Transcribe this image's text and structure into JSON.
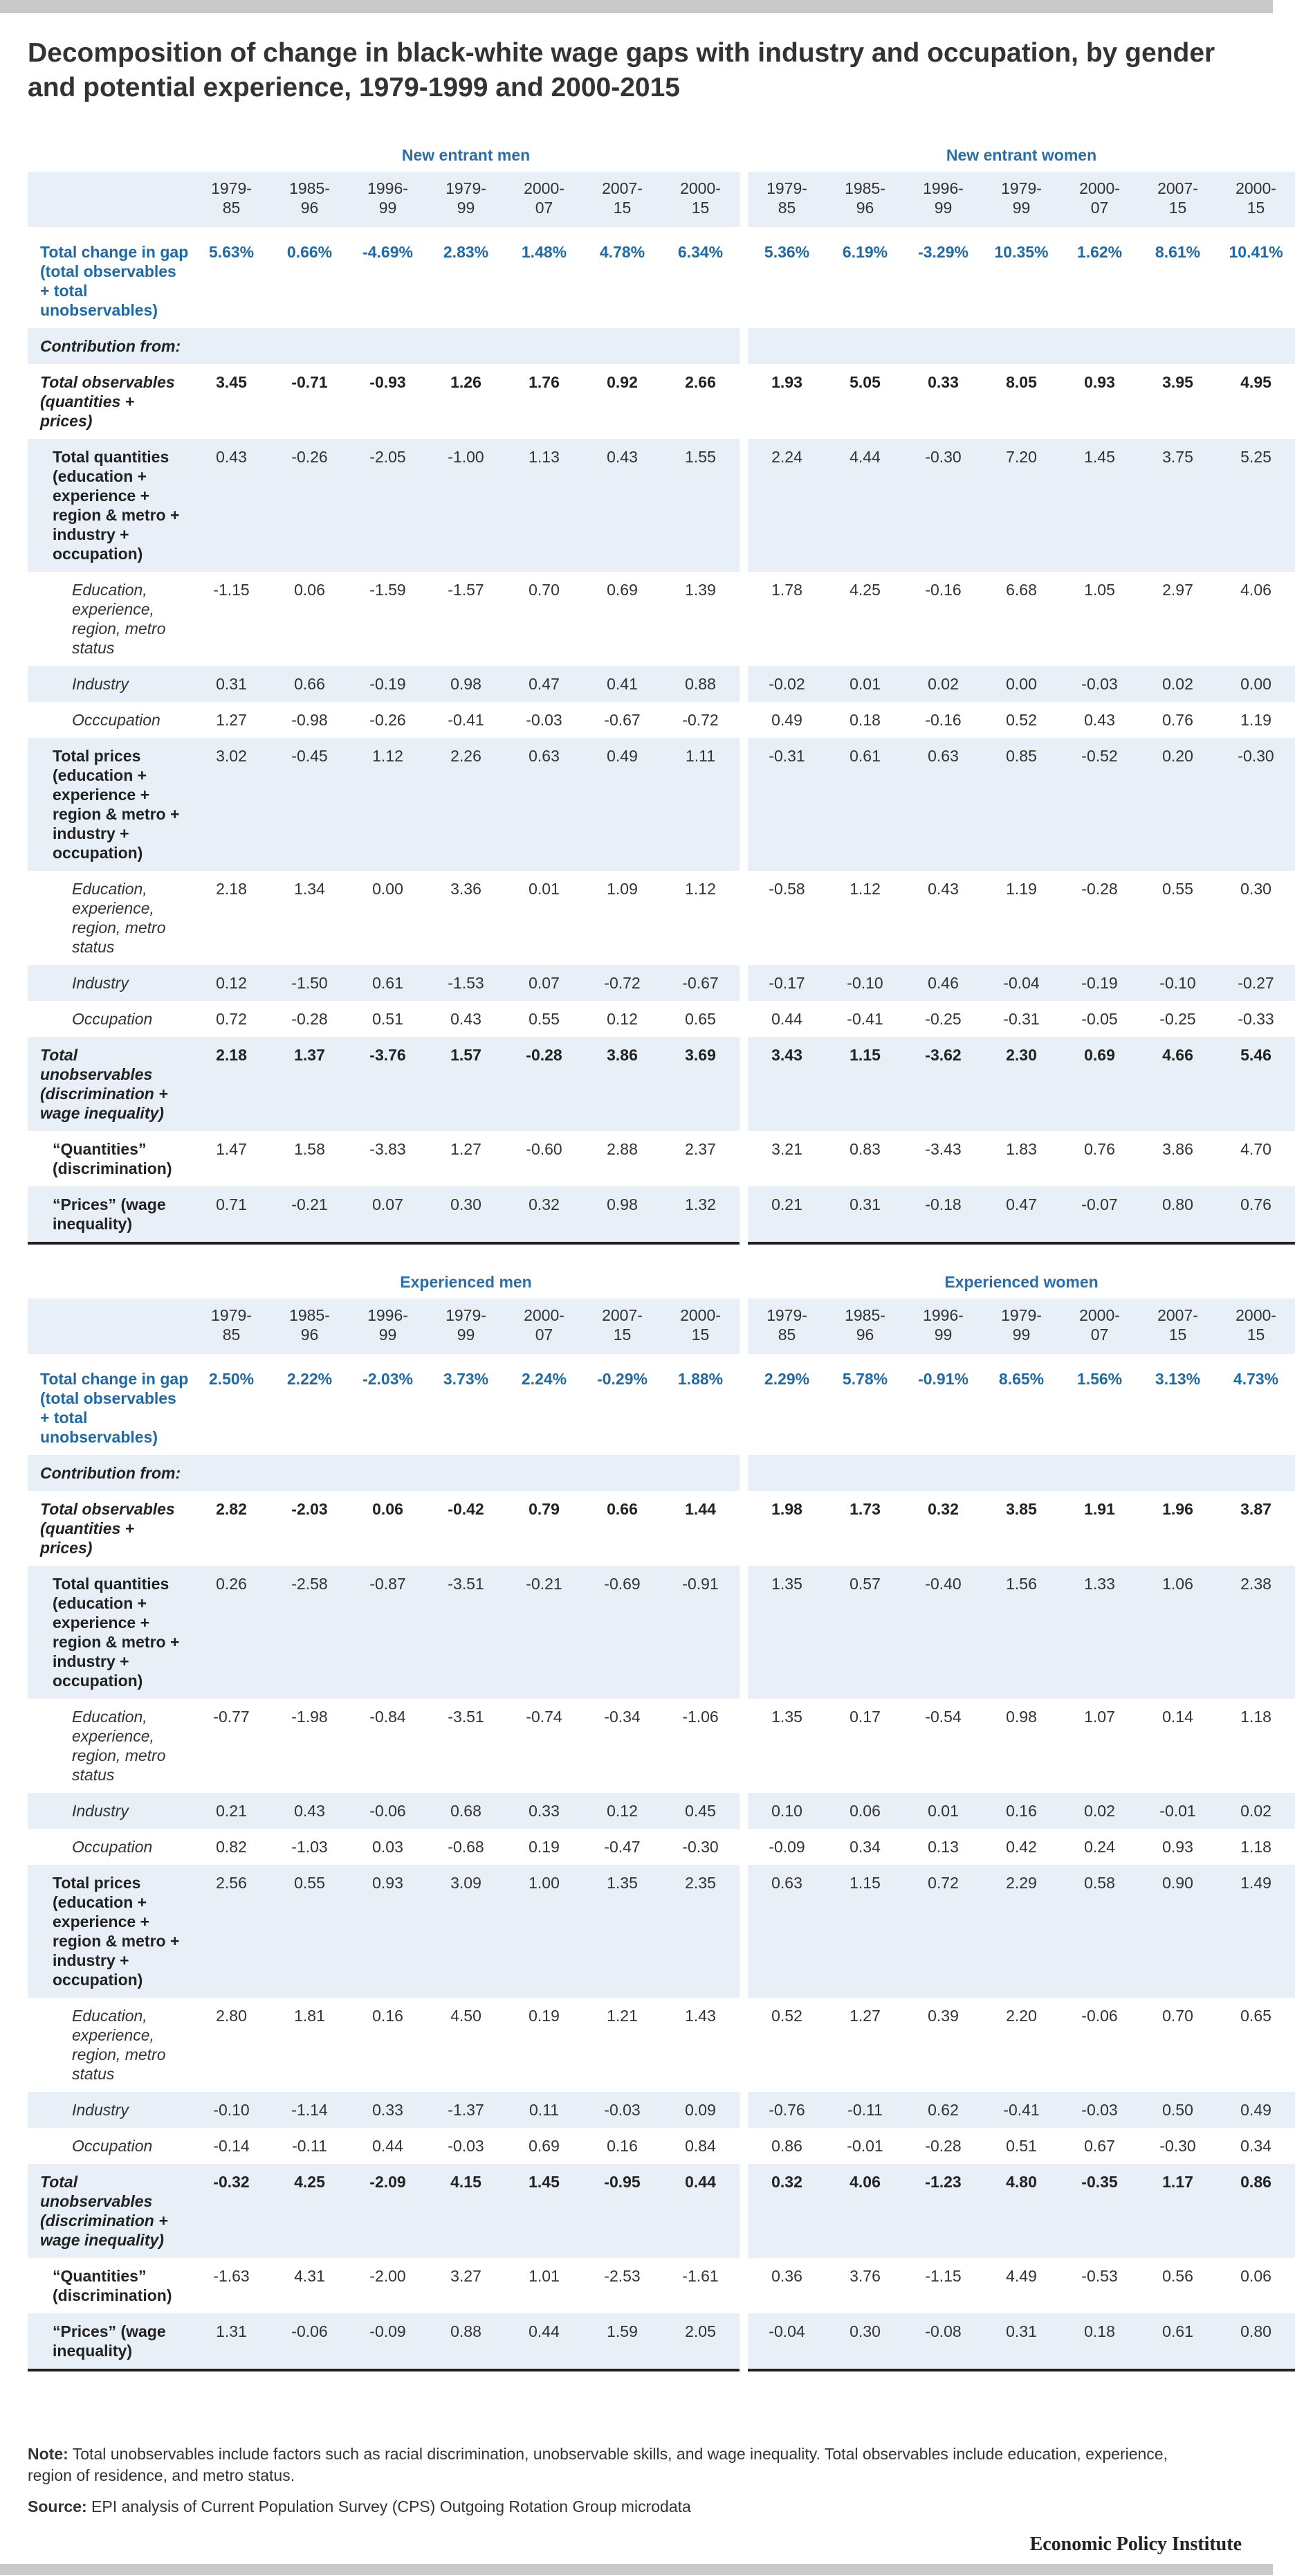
{
  "title": "Decomposition of change in black-white wage gaps with industry and occupation, by gender and potential experience, 1979-1999 and 2000-2015",
  "panels": [
    {
      "groups": [
        "New entrant men",
        "New entrant women"
      ],
      "columns": [
        "1979-85",
        "1985-96",
        "1996-99",
        "1979-99",
        "2000-07",
        "2007-15",
        "2000-15"
      ],
      "rows": [
        {
          "label": "Total change in gap (total observables + total unobservables)",
          "men": [
            "5.63%",
            "0.66%",
            "-4.69%",
            "2.83%",
            "1.48%",
            "4.78%",
            "6.34%"
          ],
          "women": [
            "5.36%",
            "6.19%",
            "-3.29%",
            "10.35%",
            "1.62%",
            "8.61%",
            "10.41%"
          ]
        },
        {
          "label": "Contribution from:"
        },
        {
          "label": "Total observables (quantities + prices)",
          "men": [
            "3.45",
            "-0.71",
            "-0.93",
            "1.26",
            "1.76",
            "0.92",
            "2.66"
          ],
          "women": [
            "1.93",
            "5.05",
            "0.33",
            "8.05",
            "0.93",
            "3.95",
            "4.95"
          ]
        },
        {
          "label": "Total quantities (education + experience + region & metro + industry + occupation)",
          "men": [
            "0.43",
            "-0.26",
            "-2.05",
            "-1.00",
            "1.13",
            "0.43",
            "1.55"
          ],
          "women": [
            "2.24",
            "4.44",
            "-0.30",
            "7.20",
            "1.45",
            "3.75",
            "5.25"
          ]
        },
        {
          "label": "Education, experience, region, metro status",
          "men": [
            "-1.15",
            "0.06",
            "-1.59",
            "-1.57",
            "0.70",
            "0.69",
            "1.39"
          ],
          "women": [
            "1.78",
            "4.25",
            "-0.16",
            "6.68",
            "1.05",
            "2.97",
            "4.06"
          ]
        },
        {
          "label": "Industry",
          "men": [
            "0.31",
            "0.66",
            "-0.19",
            "0.98",
            "0.47",
            "0.41",
            "0.88"
          ],
          "women": [
            "-0.02",
            "0.01",
            "0.02",
            "0.00",
            "-0.03",
            "0.02",
            "0.00"
          ]
        },
        {
          "label": "Occcupation",
          "men": [
            "1.27",
            "-0.98",
            "-0.26",
            "-0.41",
            "-0.03",
            "-0.67",
            "-0.72"
          ],
          "women": [
            "0.49",
            "0.18",
            "-0.16",
            "0.52",
            "0.43",
            "0.76",
            "1.19"
          ]
        },
        {
          "label": "Total prices (education + experience + region & metro + industry + occupation)",
          "men": [
            "3.02",
            "-0.45",
            "1.12",
            "2.26",
            "0.63",
            "0.49",
            "1.11"
          ],
          "women": [
            "-0.31",
            "0.61",
            "0.63",
            "0.85",
            "-0.52",
            "0.20",
            "-0.30"
          ]
        },
        {
          "label": "Education, experience, region, metro status",
          "men": [
            "2.18",
            "1.34",
            "0.00",
            "3.36",
            "0.01",
            "1.09",
            "1.12"
          ],
          "women": [
            "-0.58",
            "1.12",
            "0.43",
            "1.19",
            "-0.28",
            "0.55",
            "0.30"
          ]
        },
        {
          "label": "Industry",
          "men": [
            "0.12",
            "-1.50",
            "0.61",
            "-1.53",
            "0.07",
            "-0.72",
            "-0.67"
          ],
          "women": [
            "-0.17",
            "-0.10",
            "0.46",
            "-0.04",
            "-0.19",
            "-0.10",
            "-0.27"
          ]
        },
        {
          "label": "Occupation",
          "men": [
            "0.72",
            "-0.28",
            "0.51",
            "0.43",
            "0.55",
            "0.12",
            "0.65"
          ],
          "women": [
            "0.44",
            "-0.41",
            "-0.25",
            "-0.31",
            "-0.05",
            "-0.25",
            "-0.33"
          ]
        },
        {
          "label": "Total unobservables (discrimination + wage inequality)",
          "men": [
            "2.18",
            "1.37",
            "-3.76",
            "1.57",
            "-0.28",
            "3.86",
            "3.69"
          ],
          "women": [
            "3.43",
            "1.15",
            "-3.62",
            "2.30",
            "0.69",
            "4.66",
            "5.46"
          ]
        },
        {
          "label": "“Quantities” (discrimination)",
          "men": [
            "1.47",
            "1.58",
            "-3.83",
            "1.27",
            "-0.60",
            "2.88",
            "2.37"
          ],
          "women": [
            "3.21",
            "0.83",
            "-3.43",
            "1.83",
            "0.76",
            "3.86",
            "4.70"
          ]
        },
        {
          "label": "“Prices” (wage inequality)",
          "men": [
            "0.71",
            "-0.21",
            "0.07",
            "0.30",
            "0.32",
            "0.98",
            "1.32"
          ],
          "women": [
            "0.21",
            "0.31",
            "-0.18",
            "0.47",
            "-0.07",
            "0.80",
            "0.76"
          ]
        }
      ]
    },
    {
      "groups": [
        "Experienced men",
        "Experienced women"
      ],
      "columns": [
        "1979-85",
        "1985-96",
        "1996-99",
        "1979-99",
        "2000-07",
        "2007-15",
        "2000-15"
      ],
      "rows": [
        {
          "label": "Total change in gap (total observables + total unobservables)",
          "men": [
            "2.50%",
            "2.22%",
            "-2.03%",
            "3.73%",
            "2.24%",
            "-0.29%",
            "1.88%"
          ],
          "women": [
            "2.29%",
            "5.78%",
            "-0.91%",
            "8.65%",
            "1.56%",
            "3.13%",
            "4.73%"
          ]
        },
        {
          "label": "Contribution from:"
        },
        {
          "label": "Total observables (quantities + prices)",
          "men": [
            "2.82",
            "-2.03",
            "0.06",
            "-0.42",
            "0.79",
            "0.66",
            "1.44"
          ],
          "women": [
            "1.98",
            "1.73",
            "0.32",
            "3.85",
            "1.91",
            "1.96",
            "3.87"
          ]
        },
        {
          "label": "Total quantities (education + experience + region & metro + industry + occupation)",
          "men": [
            "0.26",
            "-2.58",
            "-0.87",
            "-3.51",
            "-0.21",
            "-0.69",
            "-0.91"
          ],
          "women": [
            "1.35",
            "0.57",
            "-0.40",
            "1.56",
            "1.33",
            "1.06",
            "2.38"
          ]
        },
        {
          "label": "Education, experience, region, metro status",
          "men": [
            "-0.77",
            "-1.98",
            "-0.84",
            "-3.51",
            "-0.74",
            "-0.34",
            "-1.06"
          ],
          "women": [
            "1.35",
            "0.17",
            "-0.54",
            "0.98",
            "1.07",
            "0.14",
            "1.18"
          ]
        },
        {
          "label": "Industry",
          "men": [
            "0.21",
            "0.43",
            "-0.06",
            "0.68",
            "0.33",
            "0.12",
            "0.45"
          ],
          "women": [
            "0.10",
            "0.06",
            "0.01",
            "0.16",
            "0.02",
            "-0.01",
            "0.02"
          ]
        },
        {
          "label": "Occupation",
          "men": [
            "0.82",
            "-1.03",
            "0.03",
            "-0.68",
            "0.19",
            "-0.47",
            "-0.30"
          ],
          "women": [
            "-0.09",
            "0.34",
            "0.13",
            "0.42",
            "0.24",
            "0.93",
            "1.18"
          ]
        },
        {
          "label": "Total prices (education + experience + region & metro + industry + occupation)",
          "men": [
            "2.56",
            "0.55",
            "0.93",
            "3.09",
            "1.00",
            "1.35",
            "2.35"
          ],
          "women": [
            "0.63",
            "1.15",
            "0.72",
            "2.29",
            "0.58",
            "0.90",
            "1.49"
          ]
        },
        {
          "label": "Education, experience, region, metro status",
          "men": [
            "2.80",
            "1.81",
            "0.16",
            "4.50",
            "0.19",
            "1.21",
            "1.43"
          ],
          "women": [
            "0.52",
            "1.27",
            "0.39",
            "2.20",
            "-0.06",
            "0.70",
            "0.65"
          ]
        },
        {
          "label": "Industry",
          "men": [
            "-0.10",
            "-1.14",
            "0.33",
            "-1.37",
            "0.11",
            "-0.03",
            "0.09"
          ],
          "women": [
            "-0.76",
            "-0.11",
            "0.62",
            "-0.41",
            "-0.03",
            "0.50",
            "0.49"
          ]
        },
        {
          "label": "Occupation",
          "men": [
            "-0.14",
            "-0.11",
            "0.44",
            "-0.03",
            "0.69",
            "0.16",
            "0.84"
          ],
          "women": [
            "0.86",
            "-0.01",
            "-0.28",
            "0.51",
            "0.67",
            "-0.30",
            "0.34"
          ]
        },
        {
          "label": "Total unobservables (discrimination + wage inequality)",
          "men": [
            "-0.32",
            "4.25",
            "-2.09",
            "4.15",
            "1.45",
            "-0.95",
            "0.44"
          ],
          "women": [
            "0.32",
            "4.06",
            "-1.23",
            "4.80",
            "-0.35",
            "1.17",
            "0.86"
          ]
        },
        {
          "label": "“Quantities” (discrimination)",
          "men": [
            "-1.63",
            "4.31",
            "-2.00",
            "3.27",
            "1.01",
            "-2.53",
            "-1.61"
          ],
          "women": [
            "0.36",
            "3.76",
            "-1.15",
            "4.49",
            "-0.53",
            "0.56",
            "0.06"
          ]
        },
        {
          "label": "“Prices” (wage inequality)",
          "men": [
            "1.31",
            "-0.06",
            "-0.09",
            "0.88",
            "0.44",
            "1.59",
            "2.05"
          ],
          "women": [
            "-0.04",
            "0.30",
            "-0.08",
            "0.31",
            "0.18",
            "0.61",
            "0.80"
          ]
        }
      ]
    }
  ],
  "note_label": "Note:",
  "note": "Total unobservables include factors such as racial discrimination, unobservable skills, and wage inequality. Total observables include education, experience, region of residence, and metro status.",
  "source_label": "Source:",
  "source": "EPI analysis of Current Population Survey (CPS) Outgoing Rotation Group microdata",
  "footer": "Economic Policy Institute"
}
